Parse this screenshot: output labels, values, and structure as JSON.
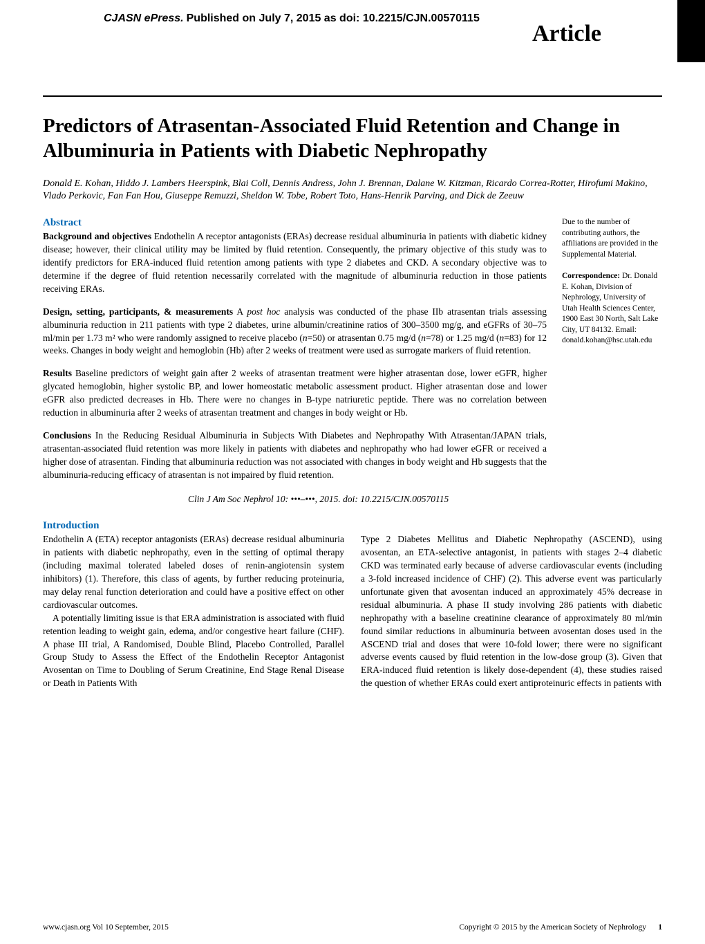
{
  "header": {
    "epress_bold": "CJASN ePress.",
    "epress_rest": " Published on July 7, 2015 as doi: 10.2215/CJN.00570115",
    "article_label": "Article"
  },
  "title": "Predictors of Atrasentan-Associated Fluid Retention and Change in Albuminuria in Patients with Diabetic Nephropathy",
  "authors": "Donald E. Kohan, Hiddo J. Lambers Heerspink, Blai Coll, Dennis Andress, John J. Brennan, Dalane W. Kitzman, Ricardo Correa-Rotter, Hirofumi Makino, Vlado Perkovic, Fan Fan Hou, Giuseppe Remuzzi, Sheldon W. Tobe, Robert Toto, Hans-Henrik Parving, and Dick de Zeeuw",
  "sidebar": {
    "affil_note": "Due to the number of contributing authors, the affiliations are provided in the Supplemental Material.",
    "corr_head": "Correspondence:",
    "corr_body": "Dr. Donald E. Kohan, Division of Nephrology, University of Utah Health Sciences Center, 1900 East 30 North, Salt Lake City, UT 84132. Email: donald.kohan@hsc.utah.edu"
  },
  "abstract": {
    "heading": "Abstract",
    "bg_head": "Background and objectives",
    "bg_body": " Endothelin A receptor antagonists (ERAs) decrease residual albuminuria in patients with diabetic kidney disease; however, their clinical utility may be limited by fluid retention. Consequently, the primary objective of this study was to identify predictors for ERA-induced fluid retention among patients with type 2 diabetes and CKD. A secondary objective was to determine if the degree of fluid retention necessarily correlated with the magnitude of albuminuria reduction in those patients receiving ERAs.",
    "design_head": "Design, setting, participants, & measurements",
    "design_body_pre": " A ",
    "design_posthoc": "post hoc",
    "design_body_post": " analysis was conducted of the phase IIb atrasentan trials assessing albuminuria reduction in 211 patients with type 2 diabetes, urine albumin/creatinine ratios of 300–3500 mg/g, and eGFRs of 30–75 ml/min per 1.73 m² who were randomly assigned to receive placebo (",
    "n": "n",
    "d1": "=50) or atrasentan 0.75 mg/d (",
    "d2": "=78) or 1.25 mg/d (",
    "d3": "=83) for 12 weeks. Changes in body weight and hemoglobin (Hb) after 2 weeks of treatment were used as surrogate markers of fluid retention.",
    "results_head": "Results",
    "results_body": " Baseline predictors of weight gain after 2 weeks of atrasentan treatment were higher atrasentan dose, lower eGFR, higher glycated hemoglobin, higher systolic BP, and lower homeostatic metabolic assessment product. Higher atrasentan dose and lower eGFR also predicted decreases in Hb. There were no changes in B-type natriuretic peptide. There was no correlation between reduction in albuminuria after 2 weeks of atrasentan treatment and changes in body weight or Hb.",
    "concl_head": "Conclusions",
    "concl_body": " In the Reducing Residual Albuminuria in Subjects With Diabetes and Nephropathy With Atrasentan/JAPAN trials, atrasentan-associated fluid retention was more likely in patients with diabetes and nephropathy who had lower eGFR or received a higher dose of atrasentan. Finding that albuminuria reduction was not associated with changes in body weight and Hb suggests that the albuminuria-reducing efficacy of atrasentan is not impaired by fluid retention.",
    "citation": "Clin J Am Soc Nephrol 10: •••–•••, 2015. doi: 10.2215/CJN.00570115"
  },
  "intro": {
    "heading": "Introduction",
    "left_p1": "Endothelin A (ETA) receptor antagonists (ERAs) decrease residual albuminuria in patients with diabetic nephropathy, even in the setting of optimal therapy (including maximal tolerated labeled doses of renin-angiotensin system inhibitors) (1). Therefore, this class of agents, by further reducing proteinuria, may delay renal function deterioration and could have a positive effect on other cardiovascular outcomes.",
    "left_p2": "A potentially limiting issue is that ERA administration is associated with fluid retention leading to weight gain, edema, and/or congestive heart failure (CHF). A phase III trial, A Randomised, Double Blind, Placebo Controlled, Parallel Group Study to Assess the Effect of the Endothelin Receptor Antagonist Avosentan on Time to Doubling of Serum Creatinine, End Stage Renal Disease or Death in Patients With",
    "right_p1": "Type 2 Diabetes Mellitus and Diabetic Nephropathy (ASCEND), using avosentan, an ETA-selective antagonist, in patients with stages 2–4 diabetic CKD was terminated early because of adverse cardiovascular events (including a 3-fold increased incidence of CHF) (2). This adverse event was particularly unfortunate given that avosentan induced an approximately 45% decrease in residual albuminuria. A phase II study involving 286 patients with diabetic nephropathy with a baseline creatinine clearance of approximately 80 ml/min found similar reductions in albuminuria between avosentan doses used in the ASCEND trial and doses that were 10-fold lower; there were no significant adverse events caused by fluid retention in the low-dose group (3). Given that ERA-induced fluid retention is likely dose-dependent (4), these studies raised the question of whether ERAs could exert antiproteinuric effects in patients with"
  },
  "footer": {
    "left": "www.cjasn.org Vol 10 September, 2015",
    "right": "Copyright © 2015 by the American Society of Nephrology",
    "page": "1"
  },
  "colors": {
    "heading_blue": "#0066b3",
    "text": "#000000",
    "background": "#ffffff"
  },
  "typography": {
    "title_fontsize_pt": 22,
    "body_fontsize_pt": 10,
    "side_fontsize_pt": 8.5,
    "heading_fontsize_pt": 11
  }
}
